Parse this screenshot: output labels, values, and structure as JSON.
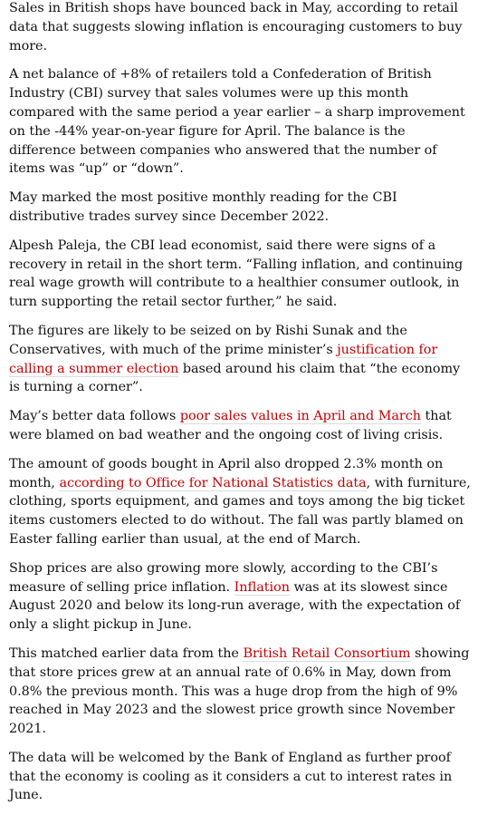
{
  "article": {
    "paragraphs": [
      [
        {
          "text": "Sales in British shops have bounced back in May, according to retail data that suggests slowing inflation is encouraging customers to buy more."
        }
      ],
      [
        {
          "text": "A net balance of +8% of retailers told a Confederation of British Industry (CBI) survey that sales volumes were up this month compared with the same period a year earlier – a sharp improvement on the -44% year-on-year figure for April. The balance is the difference between companies who answered that the number of items was “up” or “down”."
        }
      ],
      [
        {
          "text": "May marked the most positive monthly reading for the CBI distributive trades survey since December 2022."
        }
      ],
      [
        {
          "text": "Alpesh Paleja, the CBI lead economist, said there were signs of a recovery in retail in the short term. “Falling inflation, and continuing real wage growth will contribute to a healthier consumer outlook, in turn supporting the retail sector further,” he said."
        }
      ],
      [
        {
          "text": "The figures are likely to be seized on by Rishi Sunak and the Conservatives, with much of the prime minister’s "
        },
        {
          "text": "justification for calling a summer election",
          "link": true
        },
        {
          "text": " based around his claim that “the economy is turning a corner”."
        }
      ],
      [
        {
          "text": "May’s better data follows "
        },
        {
          "text": "poor sales values in April and March",
          "link": true
        },
        {
          "text": " that were blamed on bad weather and the ongoing cost of living crisis."
        }
      ],
      [
        {
          "text": "The amount of goods bought in April also dropped 2.3% month on month, "
        },
        {
          "text": "according to Office for National Statistics data",
          "link": true
        },
        {
          "text": ", with furniture, clothing, sports equipment, and games and toys among the big ticket items customers elected to do without. The fall was partly blamed on Easter falling earlier than usual, at the end of March."
        }
      ],
      [
        {
          "text": "Shop prices are also growing more slowly, according to the CBI’s measure of selling price inflation. "
        },
        {
          "text": "Inflation",
          "link": true
        },
        {
          "text": " was at its slowest since August 2020 and below its long-run average, with the expectation of only a slight pickup in June."
        }
      ],
      [
        {
          "text": "This matched earlier data from the "
        },
        {
          "text": "British Retail Consortium",
          "link": true
        },
        {
          "text": " showing that store prices grew at an annual rate of 0.6% in May, down from 0.8% the previous month. This was a huge drop from the high of 9% reached in May 2023 and the slowest price growth since November 2021."
        }
      ],
      [
        {
          "text": "The data will be welcomed by the Bank of England as further proof that the economy is cooling as it considers a cut to interest rates in June."
        }
      ]
    ]
  },
  "colors": {
    "text": "#121212",
    "link": "#c70000",
    "background": "#ffffff"
  }
}
